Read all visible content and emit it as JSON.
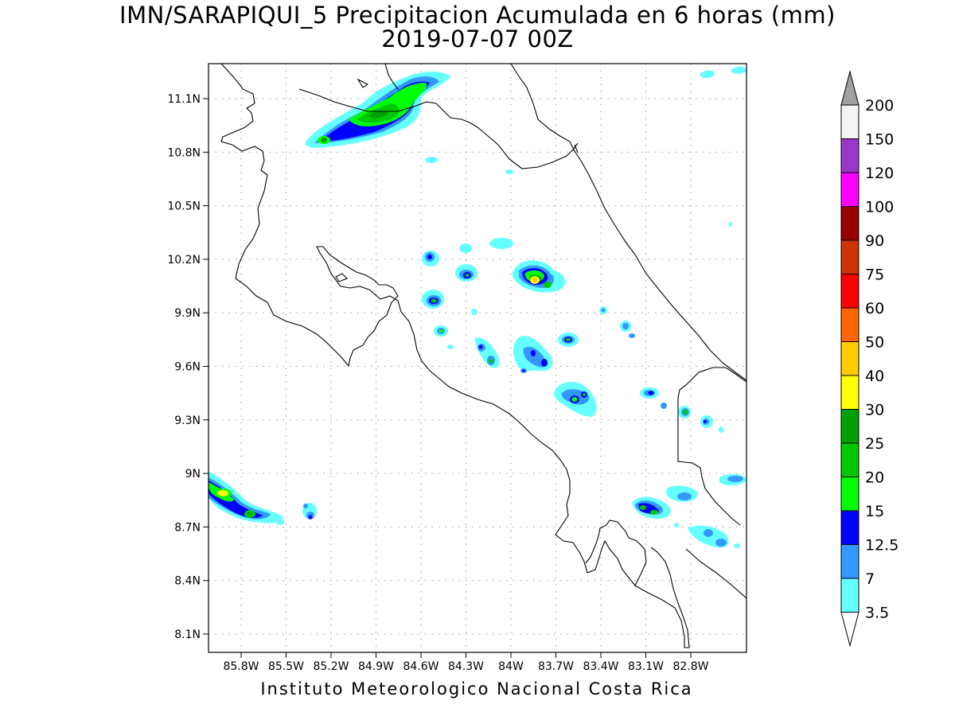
{
  "title": {
    "line1": "IMN/SARAPIQUI_5 Precipitacion Acumulada en 6 horas (mm)",
    "line2": "2019-07-07 00Z"
  },
  "footer": "Instituto Meteorologico Nacional Costa Rica",
  "map": {
    "lat_ticks": [
      "11.1N",
      "10.8N",
      "10.5N",
      "10.2N",
      "9.9N",
      "9.6N",
      "9.3N",
      "9N",
      "8.7N",
      "8.4N",
      "8.1N"
    ],
    "lon_ticks": [
      "85.8W",
      "85.5W",
      "85.2W",
      "84.9W",
      "84.6W",
      "84.3W",
      "84W",
      "83.7W",
      "83.4W",
      "83.1W",
      "82.8W"
    ],
    "grid": true,
    "coastline_color": "#000000"
  },
  "colorbar": {
    "labels": [
      "200",
      "150",
      "120",
      "100",
      "90",
      "75",
      "60",
      "50",
      "40",
      "30",
      "25",
      "20",
      "15",
      "12.5",
      "7",
      "3.5"
    ],
    "colors": [
      "#a0a0a0",
      "#f4f4f4",
      "#9b37c8",
      "#ff00ff",
      "#980000",
      "#cc3300",
      "#ff0000",
      "#ff6600",
      "#ffcc00",
      "#ffff00",
      "#00a000",
      "#00c800",
      "#00ff00",
      "#0000ff",
      "#3399ff",
      "#66ffff",
      "#ffffff"
    ]
  }
}
